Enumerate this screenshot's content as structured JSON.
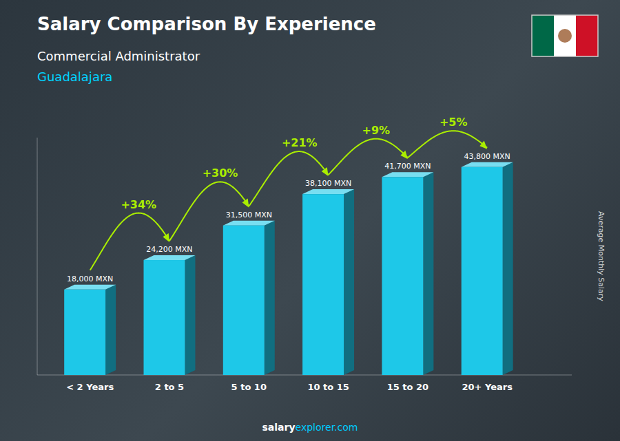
{
  "chart_data": {
    "type": "bar",
    "title": "Salary Comparison By Experience",
    "subtitle": [
      "Commercial Administrator",
      "Guadalajara"
    ],
    "categories": [
      "< 2 Years",
      "2 to 5",
      "5 to 10",
      "10 to 15",
      "15 to 20",
      "20+ Years"
    ],
    "values": [
      18000,
      24200,
      31500,
      38100,
      41700,
      43800
    ],
    "value_labels": [
      "18,000 MXN",
      "24,200 MXN",
      "31,500 MXN",
      "38,100 MXN",
      "41,700 MXN",
      "43,800 MXN"
    ],
    "data_labels": true,
    "annotations": [
      "+34%",
      "+30%",
      "+21%",
      "+9%",
      "+5%"
    ],
    "ylabel": "Average Monthly Salary",
    "footer": [
      "salary",
      "explorer.com"
    ],
    "color": "#1ec8e8",
    "ylim": [
      0,
      50000
    ],
    "tick_labels": "x",
    "grid": false
  }
}
